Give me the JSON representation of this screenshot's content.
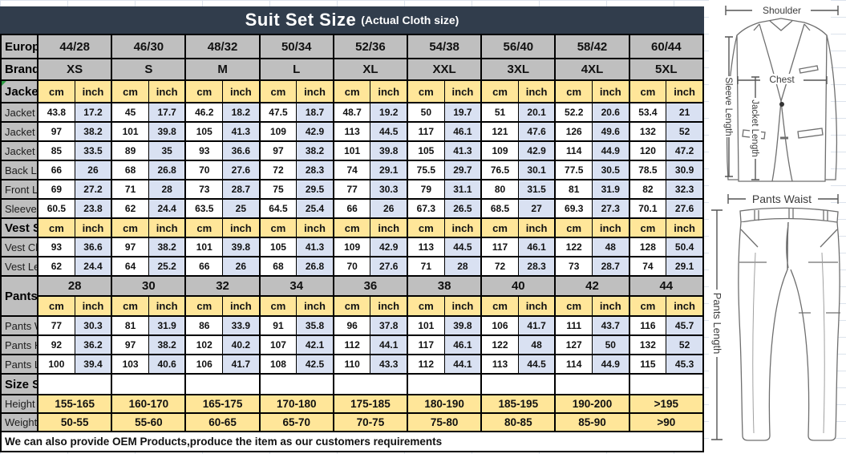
{
  "title": {
    "main": "Suit Set Size",
    "sub": "(Actual Cloth size)"
  },
  "colors": {
    "title_bar": "#313d4c",
    "header_gray": "#bfbfbf",
    "unit_yellow": "#ffe699",
    "inch_lavender": "#d9e1f2",
    "border": "#000000"
  },
  "units": {
    "cm": "cm",
    "inch": "inch"
  },
  "table": {
    "rows": [
      {
        "type": "sizes",
        "label": "European size",
        "values": [
          "44/28",
          "46/30",
          "48/32",
          "50/34",
          "52/36",
          "54/38",
          "56/40",
          "58/42",
          "60/44"
        ]
      },
      {
        "type": "sizes",
        "label": "Brand Size",
        "values": [
          "XS",
          "S",
          "M",
          "L",
          "XL",
          "XXL",
          "3XL",
          "4XL",
          "5XL"
        ]
      },
      {
        "type": "units",
        "label": "Jacket Size"
      },
      {
        "type": "data",
        "label": "Jacket Shoulder",
        "pairs": [
          [
            "43.8",
            "17.2"
          ],
          [
            "45",
            "17.7"
          ],
          [
            "46.2",
            "18.2"
          ],
          [
            "47.5",
            "18.7"
          ],
          [
            "48.7",
            "19.2"
          ],
          [
            "50",
            "19.7"
          ],
          [
            "51",
            "20.1"
          ],
          [
            "52.2",
            "20.6"
          ],
          [
            "53.4",
            "21"
          ]
        ]
      },
      {
        "type": "data",
        "label": "Jacket Chest",
        "pairs": [
          [
            "97",
            "38.2"
          ],
          [
            "101",
            "39.8"
          ],
          [
            "105",
            "41.3"
          ],
          [
            "109",
            "42.9"
          ],
          [
            "113",
            "44.5"
          ],
          [
            "117",
            "46.1"
          ],
          [
            "121",
            "47.6"
          ],
          [
            "126",
            "49.6"
          ],
          [
            "132",
            "52"
          ]
        ]
      },
      {
        "type": "data",
        "label": "Jacket Belly",
        "pairs": [
          [
            "85",
            "33.5"
          ],
          [
            "89",
            "35"
          ],
          [
            "93",
            "36.6"
          ],
          [
            "97",
            "38.2"
          ],
          [
            "101",
            "39.8"
          ],
          [
            "105",
            "41.3"
          ],
          [
            "109",
            "42.9"
          ],
          [
            "114",
            "44.9"
          ],
          [
            "120",
            "47.2"
          ]
        ]
      },
      {
        "type": "data",
        "label": "Back Length",
        "pairs": [
          [
            "66",
            "26"
          ],
          [
            "68",
            "26.8"
          ],
          [
            "70",
            "27.6"
          ],
          [
            "72",
            "28.3"
          ],
          [
            "74",
            "29.1"
          ],
          [
            "75.5",
            "29.7"
          ],
          [
            "76.5",
            "30.1"
          ],
          [
            "77.5",
            "30.5"
          ],
          [
            "78.5",
            "30.9"
          ]
        ]
      },
      {
        "type": "data",
        "label": "Front Length",
        "pairs": [
          [
            "69",
            "27.2"
          ],
          [
            "71",
            "28"
          ],
          [
            "73",
            "28.7"
          ],
          [
            "75",
            "29.5"
          ],
          [
            "77",
            "30.3"
          ],
          [
            "79",
            "31.1"
          ],
          [
            "80",
            "31.5"
          ],
          [
            "81",
            "31.9"
          ],
          [
            "82",
            "32.3"
          ]
        ]
      },
      {
        "type": "data",
        "label": "Sleeve Length",
        "pairs": [
          [
            "60.5",
            "23.8"
          ],
          [
            "62",
            "24.4"
          ],
          [
            "63.5",
            "25"
          ],
          [
            "64.5",
            "25.4"
          ],
          [
            "66",
            "26"
          ],
          [
            "67.3",
            "26.5"
          ],
          [
            "68.5",
            "27"
          ],
          [
            "69.3",
            "27.3"
          ],
          [
            "70.1",
            "27.6"
          ]
        ]
      },
      {
        "type": "units",
        "label": "Vest Size"
      },
      {
        "type": "data",
        "label": "Vest Chest",
        "pairs": [
          [
            "93",
            "36.6"
          ],
          [
            "97",
            "38.2"
          ],
          [
            "101",
            "39.8"
          ],
          [
            "105",
            "41.3"
          ],
          [
            "109",
            "42.9"
          ],
          [
            "113",
            "44.5"
          ],
          [
            "117",
            "46.1"
          ],
          [
            "122",
            "48"
          ],
          [
            "128",
            "50.4"
          ]
        ]
      },
      {
        "type": "data",
        "label": "Vest Length",
        "pairs": [
          [
            "62",
            "24.4"
          ],
          [
            "64",
            "25.2"
          ],
          [
            "66",
            "26"
          ],
          [
            "68",
            "26.8"
          ],
          [
            "70",
            "27.6"
          ],
          [
            "71",
            "28"
          ],
          [
            "72",
            "28.3"
          ],
          [
            "73",
            "28.7"
          ],
          [
            "74",
            "29.1"
          ]
        ]
      },
      {
        "type": "sizes2",
        "label": "Pants size",
        "values": [
          "28",
          "30",
          "32",
          "34",
          "36",
          "38",
          "40",
          "42",
          "44"
        ]
      },
      {
        "type": "units_nolabel"
      },
      {
        "type": "data",
        "label": "Pants Waist",
        "pairs": [
          [
            "77",
            "30.3"
          ],
          [
            "81",
            "31.9"
          ],
          [
            "86",
            "33.9"
          ],
          [
            "91",
            "35.8"
          ],
          [
            "96",
            "37.8"
          ],
          [
            "101",
            "39.8"
          ],
          [
            "106",
            "41.7"
          ],
          [
            "111",
            "43.7"
          ],
          [
            "116",
            "45.7"
          ]
        ]
      },
      {
        "type": "data",
        "label": "Pants Hips",
        "pairs": [
          [
            "92",
            "36.2"
          ],
          [
            "97",
            "38.2"
          ],
          [
            "102",
            "40.2"
          ],
          [
            "107",
            "42.1"
          ],
          [
            "112",
            "44.1"
          ],
          [
            "117",
            "46.1"
          ],
          [
            "122",
            "48"
          ],
          [
            "127",
            "50"
          ],
          [
            "132",
            "52"
          ]
        ]
      },
      {
        "type": "data",
        "label": "Pants Length",
        "pairs": [
          [
            "100",
            "39.4"
          ],
          [
            "103",
            "40.6"
          ],
          [
            "106",
            "41.7"
          ],
          [
            "108",
            "42.5"
          ],
          [
            "110",
            "43.3"
          ],
          [
            "112",
            "44.1"
          ],
          [
            "113",
            "44.5"
          ],
          [
            "114",
            "44.9"
          ],
          [
            "115",
            "45.3"
          ]
        ]
      },
      {
        "type": "blank",
        "label": "Size Suggestion"
      },
      {
        "type": "range",
        "label": "Height /cm",
        "values": [
          "155-165",
          "160-170",
          "165-175",
          "170-180",
          "175-185",
          "180-190",
          "185-195",
          "190-200",
          ">195"
        ]
      },
      {
        "type": "range",
        "label": "Weight /kg",
        "values": [
          "50-55",
          "55-60",
          "60-65",
          "65-70",
          "70-75",
          "75-80",
          "80-85",
          "85-90",
          ">90"
        ]
      }
    ]
  },
  "footer": "We can also provide OEM Products,produce the item as our customers requirements",
  "diagram": {
    "shoulder": "Shoulder",
    "chest": "Chest",
    "jacket_length": "Jacket Length",
    "sleeve_length": "Sleeve Length",
    "pants_waist": "Pants Waist",
    "pants_length": "Pants Length"
  }
}
